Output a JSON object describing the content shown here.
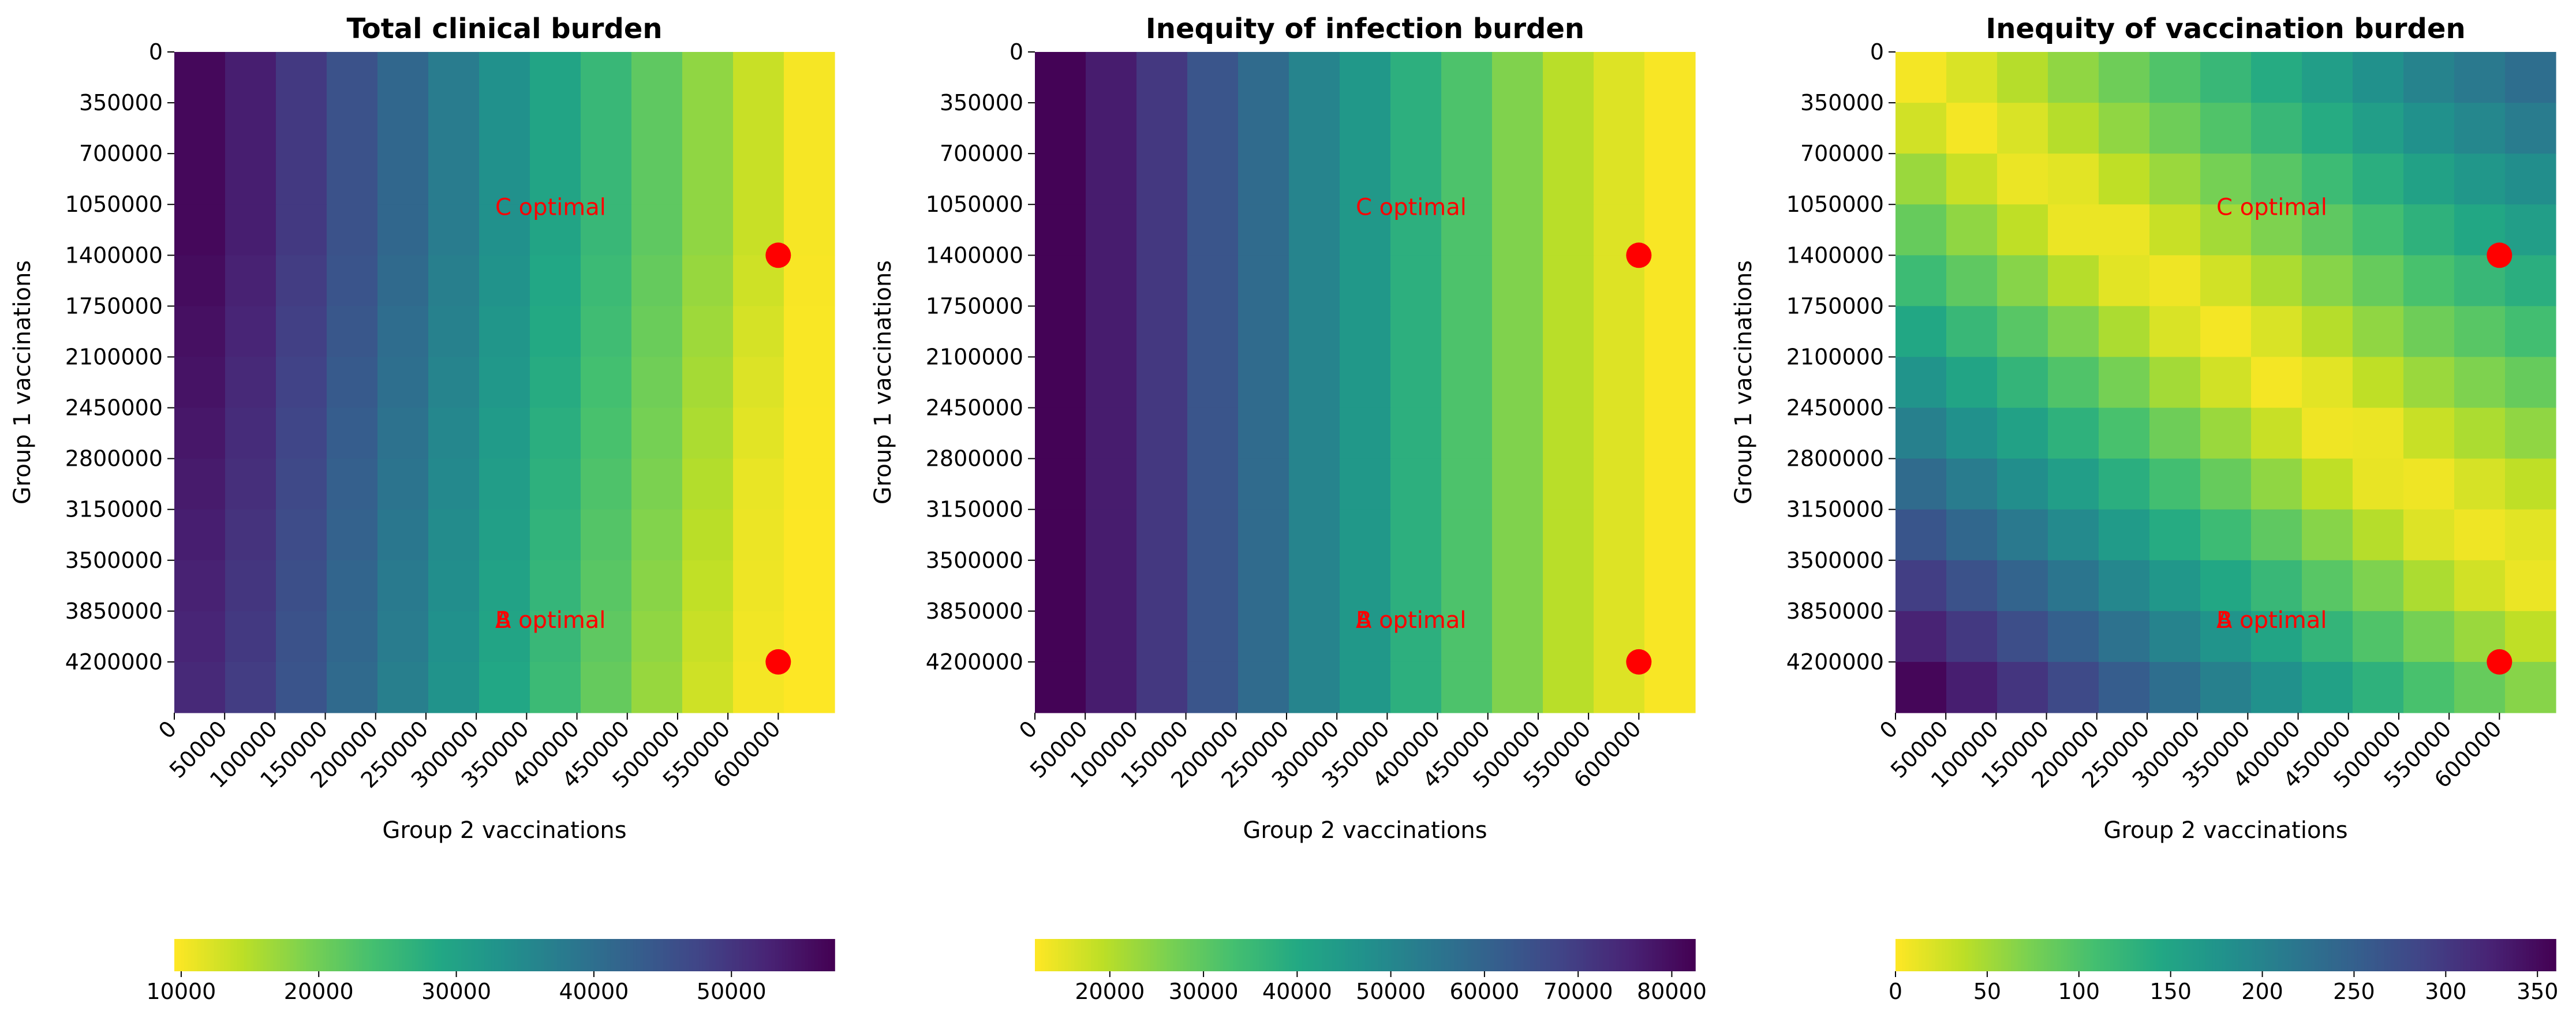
{
  "chart_data": [
    {
      "type": "heatmap",
      "title": "Total clinical burden",
      "xlabel": "Group 2 vaccinations",
      "ylabel": "Group 1 vaccinations",
      "x_ticks": [
        "0",
        "50000",
        "100000",
        "150000",
        "200000",
        "250000",
        "300000",
        "350000",
        "400000",
        "450000",
        "500000",
        "550000",
        "600000"
      ],
      "y_ticks": [
        "0",
        "350000",
        "700000",
        "1050000",
        "1400000",
        "1750000",
        "2100000",
        "2450000",
        "2800000",
        "3150000",
        "3500000",
        "3850000",
        "4200000"
      ],
      "colormap": "viridis",
      "colorbar": {
        "orientation": "horizontal",
        "ticks": [
          "10000",
          "20000",
          "30000",
          "40000",
          "50000"
        ],
        "range": [
          9500,
          57500
        ],
        "reversed": true
      },
      "pattern": "columns",
      "grid": [
        [
          56500,
          53500,
          49500,
          45500,
          41500,
          37500,
          33500,
          29500,
          25500,
          21500,
          17500,
          13500,
          10000
        ],
        [
          56500,
          53500,
          49500,
          45500,
          41500,
          37500,
          33500,
          29500,
          25500,
          21500,
          17500,
          13500,
          10000
        ],
        [
          56500,
          53500,
          49500,
          45500,
          41500,
          37500,
          33500,
          29500,
          25500,
          21500,
          17500,
          13500,
          10000
        ],
        [
          56500,
          53500,
          49500,
          45500,
          41500,
          37500,
          33500,
          29500,
          25500,
          21500,
          17500,
          13500,
          10000
        ],
        [
          56000,
          53000,
          49000,
          45000,
          41000,
          37000,
          33000,
          29000,
          25000,
          21000,
          17000,
          13000,
          9900
        ],
        [
          55500,
          52500,
          48500,
          44500,
          40500,
          36500,
          32500,
          28500,
          24500,
          20500,
          16500,
          12500,
          9800
        ],
        [
          55000,
          52000,
          48000,
          44000,
          40000,
          36000,
          32000,
          28000,
          24000,
          20000,
          16000,
          12000,
          9800
        ],
        [
          54500,
          51500,
          47500,
          43500,
          39500,
          35500,
          31500,
          27500,
          23500,
          19500,
          15500,
          11500,
          9700
        ],
        [
          54000,
          51000,
          47000,
          43000,
          39000,
          35000,
          31000,
          27000,
          23000,
          19000,
          15000,
          11000,
          9700
        ],
        [
          53500,
          50500,
          46500,
          42500,
          38500,
          34500,
          30500,
          26500,
          22500,
          18500,
          14500,
          10800,
          9600
        ],
        [
          53000,
          50000,
          46000,
          42000,
          38000,
          34000,
          30000,
          26000,
          22000,
          18000,
          14000,
          10600,
          9600
        ],
        [
          52500,
          49500,
          45500,
          41500,
          37500,
          33500,
          29500,
          25500,
          21500,
          17500,
          13500,
          10400,
          9500
        ],
        [
          52000,
          49000,
          45000,
          41000,
          37000,
          33000,
          29000,
          25000,
          21000,
          17000,
          13000,
          10200,
          9500
        ]
      ],
      "markers": [
        {
          "label": "C optimal",
          "x": 600000,
          "y": 1400000
        },
        {
          "label": "A optimal",
          "x": 600000,
          "y": 4200000
        },
        {
          "label": "B optimal",
          "x": 600000,
          "y": 4200000
        }
      ]
    },
    {
      "type": "heatmap",
      "title": "Inequity of infection burden",
      "xlabel": "Group 2 vaccinations",
      "ylabel": "Group 1 vaccinations",
      "x_ticks": [
        "0",
        "50000",
        "100000",
        "150000",
        "200000",
        "250000",
        "300000",
        "350000",
        "400000",
        "450000",
        "500000",
        "550000",
        "600000"
      ],
      "y_ticks": [
        "0",
        "350000",
        "700000",
        "1050000",
        "1400000",
        "1750000",
        "2100000",
        "2450000",
        "2800000",
        "3150000",
        "3500000",
        "3850000",
        "4200000"
      ],
      "colormap": "viridis",
      "colorbar": {
        "orientation": "horizontal",
        "ticks": [
          "20000",
          "30000",
          "40000",
          "50000",
          "60000",
          "70000",
          "80000"
        ],
        "range": [
          12000,
          82500
        ],
        "reversed": true
      },
      "pattern": "columns",
      "grid": [
        [
          82000,
          77000,
          71000,
          64000,
          58000,
          51000,
          45000,
          38000,
          32000,
          25500,
          19500,
          15500,
          12500
        ],
        [
          82000,
          77000,
          71000,
          64000,
          58000,
          51000,
          45000,
          38000,
          32000,
          25500,
          19500,
          15500,
          12500
        ],
        [
          82000,
          77000,
          71000,
          64000,
          58000,
          51000,
          45000,
          38000,
          32000,
          25500,
          19500,
          15500,
          12500
        ],
        [
          82000,
          77000,
          71000,
          64000,
          58000,
          51000,
          45000,
          38000,
          32000,
          25500,
          19500,
          15500,
          12500
        ],
        [
          82000,
          77000,
          71000,
          64000,
          58000,
          51000,
          45000,
          38000,
          32000,
          25500,
          19500,
          15500,
          12500
        ],
        [
          82000,
          77000,
          71000,
          64000,
          58000,
          51000,
          45000,
          38000,
          32000,
          25500,
          19500,
          15500,
          12500
        ],
        [
          82000,
          77000,
          71000,
          64000,
          58000,
          51000,
          45000,
          38000,
          32000,
          25500,
          19500,
          15500,
          12500
        ],
        [
          82000,
          77000,
          71000,
          64000,
          58000,
          51000,
          45000,
          38000,
          32000,
          25500,
          19500,
          15500,
          12500
        ],
        [
          82000,
          77000,
          71000,
          64000,
          58000,
          51000,
          45000,
          38000,
          32000,
          25500,
          19500,
          15500,
          12500
        ],
        [
          82000,
          77000,
          71000,
          64000,
          58000,
          51000,
          45000,
          38000,
          32000,
          25500,
          19500,
          15500,
          12500
        ],
        [
          82000,
          77000,
          71000,
          64000,
          58000,
          51000,
          45000,
          38000,
          32000,
          25500,
          19500,
          15500,
          12500
        ],
        [
          82000,
          77000,
          71000,
          64000,
          58000,
          51000,
          45000,
          38000,
          32000,
          25500,
          19500,
          15500,
          12500
        ],
        [
          82000,
          77000,
          71000,
          64000,
          58000,
          51000,
          45000,
          38000,
          32000,
          25500,
          19500,
          15500,
          12500
        ]
      ],
      "markers": [
        {
          "label": "C optimal",
          "x": 600000,
          "y": 1400000
        },
        {
          "label": "A optimal",
          "x": 600000,
          "y": 4200000
        },
        {
          "label": "B optimal",
          "x": 600000,
          "y": 4200000
        }
      ]
    },
    {
      "type": "heatmap",
      "title": "Inequity of vaccination burden",
      "xlabel": "Group 2 vaccinations",
      "ylabel": "Group 1 vaccinations",
      "x_ticks": [
        "0",
        "50000",
        "100000",
        "150000",
        "200000",
        "250000",
        "300000",
        "350000",
        "400000",
        "450000",
        "500000",
        "550000",
        "600000"
      ],
      "y_ticks": [
        "0",
        "350000",
        "700000",
        "1050000",
        "1400000",
        "1750000",
        "2100000",
        "2450000",
        "2800000",
        "3150000",
        "3500000",
        "3850000",
        "4200000"
      ],
      "colormap": "viridis",
      "colorbar": {
        "orientation": "horizontal",
        "ticks": [
          "0",
          "50",
          "100",
          "150",
          "200",
          "250",
          "300",
          "350"
        ],
        "range": [
          0,
          360
        ],
        "reversed": true
      },
      "pattern": "diagonal",
      "grid": [
        [
          5,
          20,
          40,
          60,
          80,
          100,
          120,
          140,
          160,
          180,
          200,
          215,
          230
        ],
        [
          25,
          5,
          20,
          40,
          60,
          80,
          100,
          120,
          140,
          160,
          180,
          195,
          210
        ],
        [
          55,
          30,
          10,
          15,
          35,
          55,
          75,
          95,
          115,
          135,
          155,
          170,
          185
        ],
        [
          85,
          60,
          35,
          10,
          10,
          30,
          50,
          70,
          90,
          110,
          130,
          145,
          160
        ],
        [
          115,
          90,
          65,
          40,
          15,
          8,
          25,
          45,
          65,
          85,
          105,
          120,
          135
        ],
        [
          145,
          120,
          95,
          70,
          45,
          20,
          5,
          20,
          40,
          60,
          80,
          95,
          110
        ],
        [
          175,
          150,
          125,
          100,
          75,
          50,
          25,
          5,
          15,
          35,
          55,
          70,
          85
        ],
        [
          205,
          180,
          155,
          130,
          105,
          80,
          55,
          30,
          8,
          10,
          30,
          45,
          60
        ],
        [
          235,
          210,
          185,
          160,
          135,
          110,
          85,
          60,
          35,
          12,
          8,
          22,
          35
        ],
        [
          265,
          240,
          215,
          190,
          165,
          140,
          115,
          90,
          65,
          40,
          18,
          8,
          15
        ],
        [
          295,
          270,
          245,
          220,
          195,
          170,
          145,
          120,
          95,
          70,
          45,
          25,
          10
        ],
        [
          325,
          300,
          275,
          250,
          225,
          200,
          175,
          150,
          125,
          100,
          75,
          55,
          35
        ],
        [
          355,
          330,
          305,
          280,
          255,
          230,
          205,
          180,
          155,
          130,
          105,
          85,
          65
        ]
      ],
      "markers": [
        {
          "label": "C optimal",
          "x": 600000,
          "y": 1400000
        },
        {
          "label": "A optimal",
          "x": 600000,
          "y": 4200000
        },
        {
          "label": "B optimal",
          "x": 600000,
          "y": 4200000
        }
      ]
    }
  ]
}
